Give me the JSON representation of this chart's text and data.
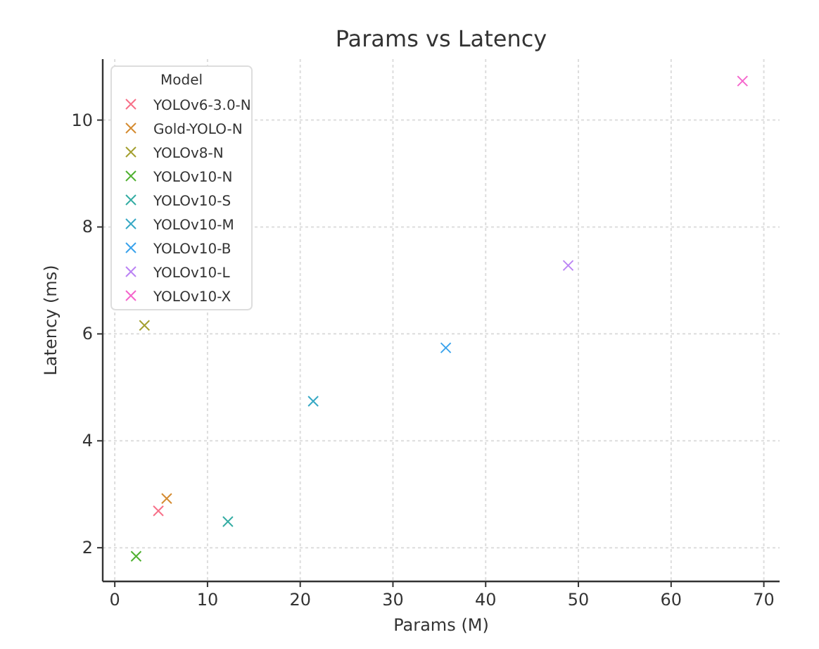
{
  "chart_data": {
    "type": "scatter",
    "title": "Params vs Latency",
    "xlabel": "Params (M)",
    "ylabel": "Latency (ms)",
    "legend_title": "Model",
    "legend": "top left",
    "grid": true,
    "marker": "cross",
    "xlim": [
      -1.3,
      71.7
    ],
    "ylim": [
      1.37,
      11.14
    ],
    "xticks": [
      0,
      10,
      20,
      30,
      40,
      50,
      60,
      70
    ],
    "yticks": [
      2,
      4,
      6,
      8,
      10
    ],
    "series": [
      {
        "name": "YOLOv6-3.0-N",
        "color": "#f77189",
        "x": [
          4.7
        ],
        "values": [
          2.69
        ]
      },
      {
        "name": "Gold-YOLO-N",
        "color": "#d58c32",
        "x": [
          5.6
        ],
        "values": [
          2.92
        ]
      },
      {
        "name": "YOLOv8-N",
        "color": "#a4a031",
        "x": [
          3.2
        ],
        "values": [
          6.16
        ]
      },
      {
        "name": "YOLOv10-N",
        "color": "#50b131",
        "x": [
          2.3
        ],
        "values": [
          1.84
        ]
      },
      {
        "name": "YOLOv10-S",
        "color": "#36ada4",
        "x": [
          12.2
        ],
        "values": [
          2.49
        ]
      },
      {
        "name": "YOLOv10-M",
        "color": "#38a9c5",
        "x": [
          21.4
        ],
        "values": [
          4.74
        ]
      },
      {
        "name": "YOLOv10-B",
        "color": "#3ba3ec",
        "x": [
          35.7
        ],
        "values": [
          5.74
        ]
      },
      {
        "name": "YOLOv10-L",
        "color": "#bb83f4",
        "x": [
          48.9
        ],
        "values": [
          7.28
        ]
      },
      {
        "name": "YOLOv10-X",
        "color": "#f565cc",
        "x": [
          67.7
        ],
        "values": [
          10.73
        ]
      }
    ]
  }
}
